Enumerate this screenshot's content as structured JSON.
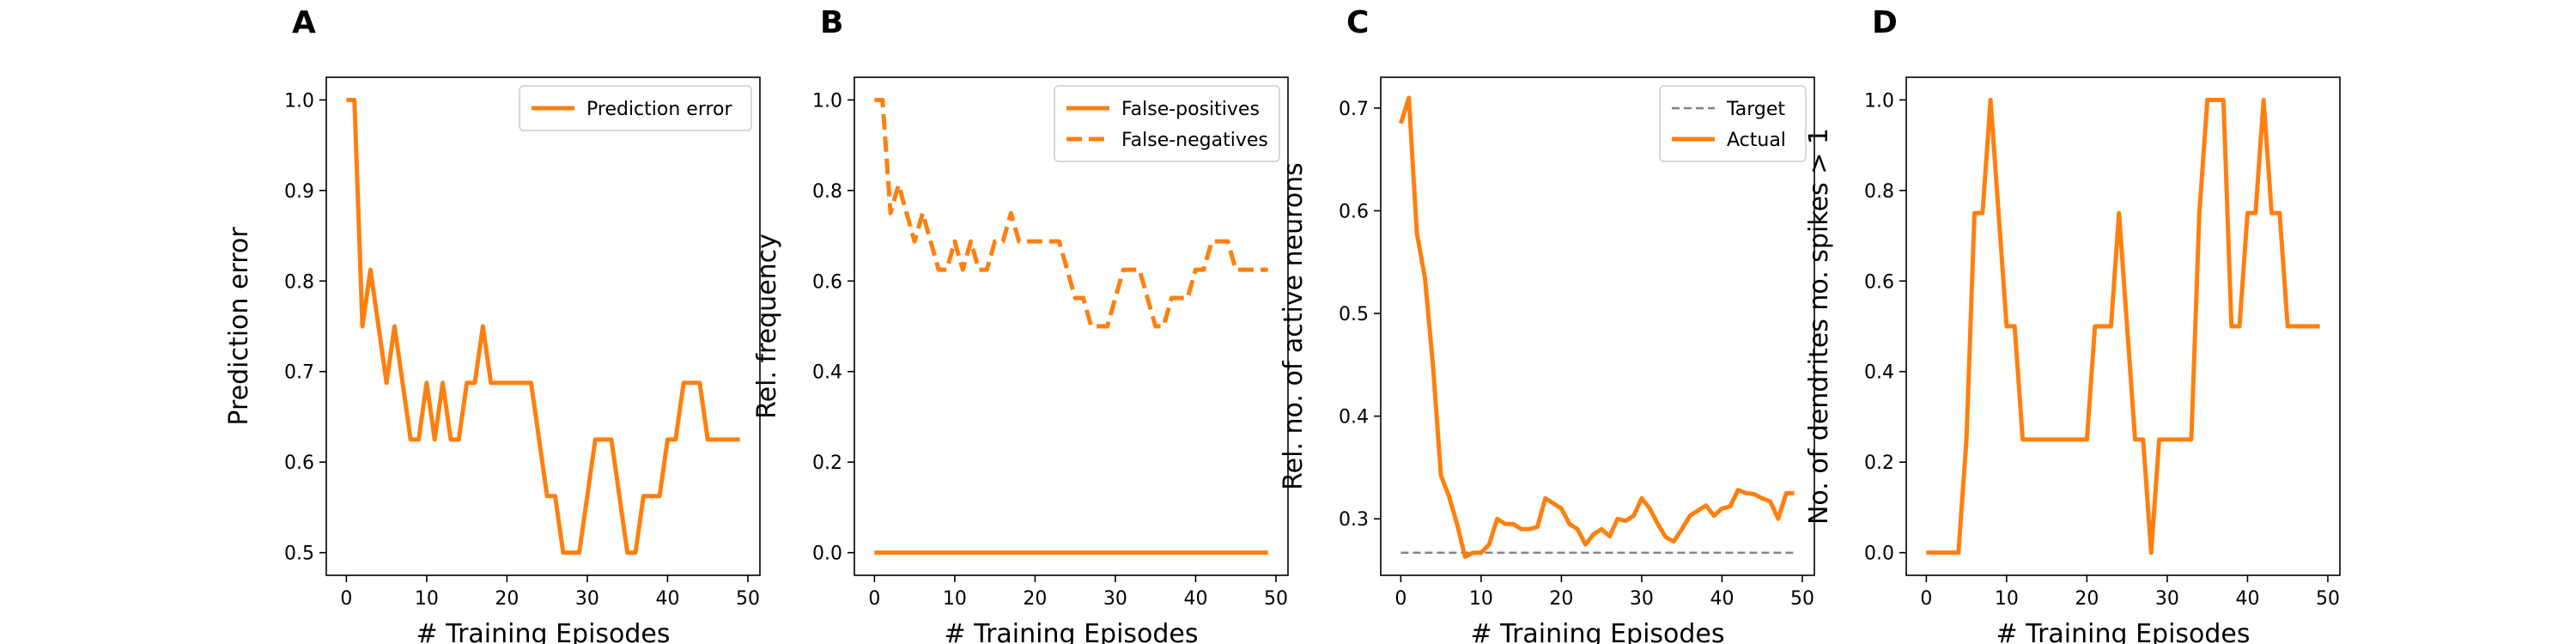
{
  "colors": {
    "series": "#ff7f0e",
    "target": "#808080",
    "axis": "#000000",
    "background": "#ffffff"
  },
  "chart_data": [
    {
      "panel_label": "A",
      "type": "line",
      "xlabel": "# Training Episodes",
      "ylabel": "Prediction error",
      "xlim": [
        -2.5,
        51.5
      ],
      "ylim": [
        0.475,
        1.025
      ],
      "xticks": [
        "0",
        "10",
        "20",
        "30",
        "40",
        "50"
      ],
      "yticks": [
        "0.5",
        "0.6",
        "0.7",
        "0.8",
        "0.9",
        "1.0"
      ],
      "legend_position": "upper right",
      "x": [
        0,
        1,
        2,
        3,
        4,
        5,
        6,
        7,
        8,
        9,
        10,
        11,
        12,
        13,
        14,
        15,
        16,
        17,
        18,
        19,
        20,
        21,
        22,
        23,
        24,
        25,
        26,
        27,
        28,
        29,
        30,
        31,
        32,
        33,
        34,
        35,
        36,
        37,
        38,
        39,
        40,
        41,
        42,
        43,
        44,
        45,
        46,
        47,
        48,
        49
      ],
      "series": [
        {
          "name": "Prediction error",
          "style": "solid",
          "values": [
            1.0,
            1.0,
            0.75,
            0.8125,
            0.75,
            0.6875,
            0.75,
            0.6875,
            0.625,
            0.625,
            0.6875,
            0.625,
            0.6875,
            0.625,
            0.625,
            0.6875,
            0.6875,
            0.75,
            0.6875,
            0.6875,
            0.6875,
            0.6875,
            0.6875,
            0.6875,
            0.625,
            0.5625,
            0.5625,
            0.5,
            0.5,
            0.5,
            0.5625,
            0.625,
            0.625,
            0.625,
            0.5625,
            0.5,
            0.5,
            0.5625,
            0.5625,
            0.5625,
            0.625,
            0.625,
            0.6875,
            0.6875,
            0.6875,
            0.625,
            0.625,
            0.625,
            0.625,
            0.625
          ]
        }
      ]
    },
    {
      "panel_label": "B",
      "type": "line",
      "xlabel": "# Training Episodes",
      "ylabel": "Rel. frequency",
      "xlim": [
        -2.5,
        51.5
      ],
      "ylim": [
        -0.05,
        1.05
      ],
      "xticks": [
        "0",
        "10",
        "20",
        "30",
        "40",
        "50"
      ],
      "yticks": [
        "0.0",
        "0.2",
        "0.4",
        "0.6",
        "0.8",
        "1.0"
      ],
      "legend_position": "upper right",
      "x": [
        0,
        1,
        2,
        3,
        4,
        5,
        6,
        7,
        8,
        9,
        10,
        11,
        12,
        13,
        14,
        15,
        16,
        17,
        18,
        19,
        20,
        21,
        22,
        23,
        24,
        25,
        26,
        27,
        28,
        29,
        30,
        31,
        32,
        33,
        34,
        35,
        36,
        37,
        38,
        39,
        40,
        41,
        42,
        43,
        44,
        45,
        46,
        47,
        48,
        49
      ],
      "series": [
        {
          "name": "False-positives",
          "style": "solid",
          "values": [
            0,
            0,
            0,
            0,
            0,
            0,
            0,
            0,
            0,
            0,
            0,
            0,
            0,
            0,
            0,
            0,
            0,
            0,
            0,
            0,
            0,
            0,
            0,
            0,
            0,
            0,
            0,
            0,
            0,
            0,
            0,
            0,
            0,
            0,
            0,
            0,
            0,
            0,
            0,
            0,
            0,
            0,
            0,
            0,
            0,
            0,
            0,
            0,
            0,
            0
          ]
        },
        {
          "name": "False-negatives",
          "style": "dashed",
          "values": [
            1.0,
            1.0,
            0.75,
            0.8125,
            0.75,
            0.6875,
            0.75,
            0.6875,
            0.625,
            0.625,
            0.6875,
            0.625,
            0.6875,
            0.625,
            0.625,
            0.6875,
            0.6875,
            0.75,
            0.6875,
            0.6875,
            0.6875,
            0.6875,
            0.6875,
            0.6875,
            0.625,
            0.5625,
            0.5625,
            0.5,
            0.5,
            0.5,
            0.5625,
            0.625,
            0.625,
            0.625,
            0.5625,
            0.5,
            0.5,
            0.5625,
            0.5625,
            0.5625,
            0.625,
            0.625,
            0.6875,
            0.6875,
            0.6875,
            0.625,
            0.625,
            0.625,
            0.625,
            0.625
          ]
        }
      ]
    },
    {
      "panel_label": "C",
      "type": "line",
      "xlabel": "# Training Episodes",
      "ylabel": "Rel. no. of active neurons",
      "xlim": [
        -2.5,
        51.5
      ],
      "ylim": [
        0.245,
        0.73
      ],
      "xticks": [
        "0",
        "10",
        "20",
        "30",
        "40",
        "50"
      ],
      "yticks": [
        "0.3",
        "0.4",
        "0.5",
        "0.6",
        "0.7"
      ],
      "legend_position": "upper right",
      "x": [
        0,
        1,
        2,
        3,
        4,
        5,
        6,
        7,
        8,
        9,
        10,
        11,
        12,
        13,
        14,
        15,
        16,
        17,
        18,
        19,
        20,
        21,
        22,
        23,
        24,
        25,
        26,
        27,
        28,
        29,
        30,
        31,
        32,
        33,
        34,
        35,
        36,
        37,
        38,
        39,
        40,
        41,
        42,
        43,
        44,
        45,
        46,
        47,
        48,
        49
      ],
      "series": [
        {
          "name": "Target",
          "style": "dashed",
          "color_key": "target",
          "values": [
            0.267,
            0.267,
            0.267,
            0.267,
            0.267,
            0.267,
            0.267,
            0.267,
            0.267,
            0.267,
            0.267,
            0.267,
            0.267,
            0.267,
            0.267,
            0.267,
            0.267,
            0.267,
            0.267,
            0.267,
            0.267,
            0.267,
            0.267,
            0.267,
            0.267,
            0.267,
            0.267,
            0.267,
            0.267,
            0.267,
            0.267,
            0.267,
            0.267,
            0.267,
            0.267,
            0.267,
            0.267,
            0.267,
            0.267,
            0.267,
            0.267,
            0.267,
            0.267,
            0.267,
            0.267,
            0.267,
            0.267,
            0.267,
            0.267,
            0.267
          ]
        },
        {
          "name": "Actual",
          "style": "solid",
          "color_key": "series",
          "values": [
            0.685,
            0.71,
            0.578,
            0.535,
            0.45,
            0.342,
            0.322,
            0.295,
            0.263,
            0.267,
            0.267,
            0.275,
            0.3,
            0.295,
            0.295,
            0.29,
            0.29,
            0.292,
            0.32,
            0.315,
            0.31,
            0.295,
            0.29,
            0.275,
            0.285,
            0.29,
            0.283,
            0.3,
            0.298,
            0.303,
            0.32,
            0.31,
            0.295,
            0.282,
            0.278,
            0.29,
            0.303,
            0.308,
            0.313,
            0.303,
            0.31,
            0.312,
            0.328,
            0.325,
            0.324,
            0.32,
            0.317,
            0.3,
            0.325,
            0.325
          ]
        }
      ]
    },
    {
      "panel_label": "D",
      "type": "line",
      "xlabel": "# Training Episodes",
      "ylabel": "No. of dendrites no. spikes > 1",
      "xlim": [
        -2.5,
        51.5
      ],
      "ylim": [
        -0.05,
        1.05
      ],
      "xticks": [
        "0",
        "10",
        "20",
        "30",
        "40",
        "50"
      ],
      "yticks": [
        "0.0",
        "0.2",
        "0.4",
        "0.6",
        "0.8",
        "1.0"
      ],
      "x": [
        0,
        1,
        2,
        3,
        4,
        5,
        6,
        7,
        8,
        9,
        10,
        11,
        12,
        13,
        14,
        15,
        16,
        17,
        18,
        19,
        20,
        21,
        22,
        23,
        24,
        25,
        26,
        27,
        28,
        29,
        30,
        31,
        32,
        33,
        34,
        35,
        36,
        37,
        38,
        39,
        40,
        41,
        42,
        43,
        44,
        45,
        46,
        47,
        48,
        49
      ],
      "series": [
        {
          "style": "solid",
          "values": [
            0,
            0,
            0,
            0,
            0,
            0.25,
            0.75,
            0.75,
            1.0,
            0.75,
            0.5,
            0.5,
            0.25,
            0.25,
            0.25,
            0.25,
            0.25,
            0.25,
            0.25,
            0.25,
            0.25,
            0.5,
            0.5,
            0.5,
            0.75,
            0.5,
            0.25,
            0.25,
            0,
            0.25,
            0.25,
            0.25,
            0.25,
            0.25,
            0.75,
            1.0,
            1.0,
            1.0,
            0.5,
            0.5,
            0.75,
            0.75,
            1.0,
            0.75,
            0.75,
            0.5,
            0.5,
            0.5,
            0.5,
            0.5
          ]
        }
      ]
    }
  ]
}
